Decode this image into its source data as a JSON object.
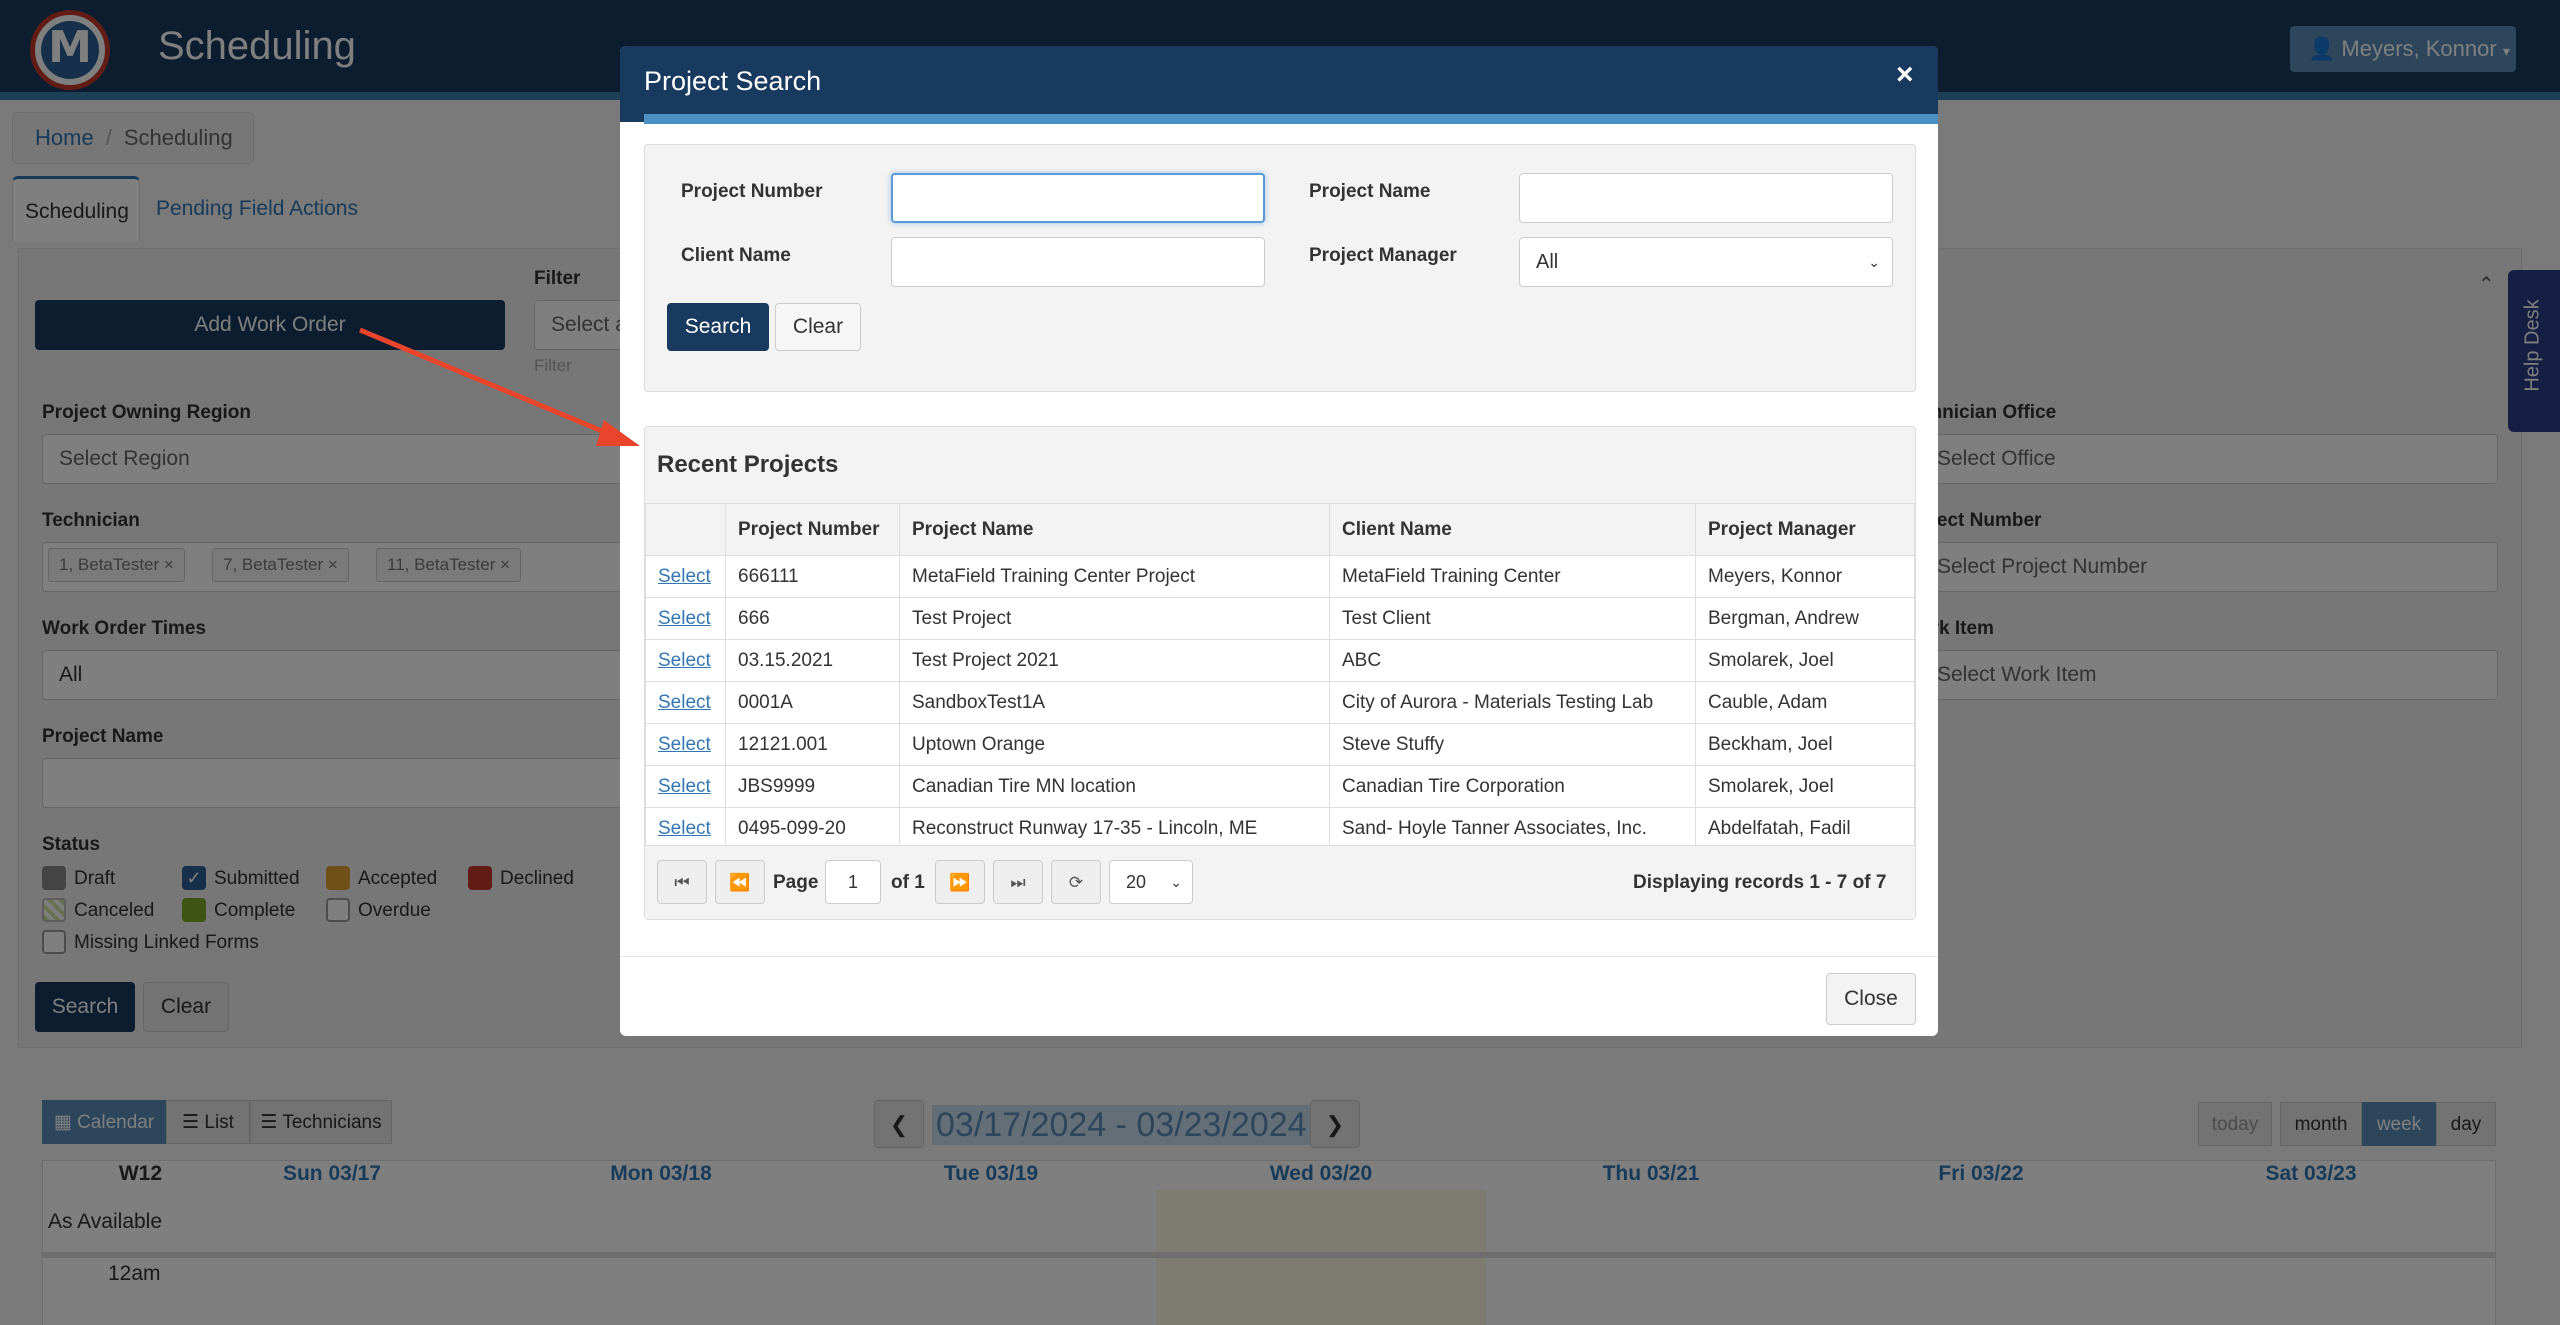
{
  "app": {
    "title": "Scheduling",
    "user": "Meyers, Konnor",
    "logo_letter": "M"
  },
  "breadcrumb": {
    "home": "Home",
    "current": "Scheduling"
  },
  "tabs": [
    "Scheduling",
    "Pending Field Actions"
  ],
  "filters": {
    "add_work_order": "Add Work Order",
    "filter_label": "Filter",
    "filter_placeholder": "Select a",
    "filter_hint": "Filter",
    "project_owning_region": "Project Owning Region",
    "region_placeholder": "Select Region",
    "technician": "Technician",
    "technician_tags": [
      "1, BetaTester",
      "7, BetaTester",
      "11, BetaTester"
    ],
    "tag_remove": "×",
    "work_order_times": "Work Order Times",
    "work_order_times_value": "All",
    "project_name": "Project Name",
    "status": "Status",
    "status_items": [
      "Draft",
      "Submitted",
      "Accepted",
      "Declined",
      "Canceled",
      "Complete",
      "Overdue",
      "Missing Linked Forms"
    ],
    "technician_office": "chnician Office",
    "office_placeholder": "Select Office",
    "project_number": "oject Number",
    "project_number_placeholder": "Select Project Number",
    "work_item": "ork Item",
    "work_item_placeholder": "Select Work Item",
    "search": "Search",
    "clear": "Clear"
  },
  "calendar": {
    "views": [
      "Calendar",
      "List",
      "Technicians"
    ],
    "date_range": "03/17/2024 - 03/23/2024",
    "prev": "❮",
    "next": "❯",
    "range_buttons": [
      "today",
      "month",
      "week",
      "day"
    ],
    "week": "W12",
    "days": [
      "Sun 03/17",
      "Mon 03/18",
      "Tue 03/19",
      "Wed 03/20",
      "Thu 03/21",
      "Fri 03/22",
      "Sat 03/23"
    ],
    "as_available": "As Available",
    "first_hour": "12am"
  },
  "help_desk": "Help Desk",
  "modal": {
    "title": "Project Search",
    "close_x": "×",
    "fields": {
      "project_number": "Project Number",
      "project_name": "Project Name",
      "client_name": "Client Name",
      "project_manager": "Project Manager",
      "project_manager_value": "All"
    },
    "search": "Search",
    "clear": "Clear",
    "recent_title": "Recent Projects",
    "columns": [
      "",
      "Project Number",
      "Project Name",
      "Client Name",
      "Project Manager"
    ],
    "select_label": "Select",
    "rows": [
      [
        "666111",
        "MetaField Training Center Project",
        "MetaField Training Center",
        "Meyers, Konnor"
      ],
      [
        "666",
        "Test Project",
        "Test Client",
        "Bergman, Andrew"
      ],
      [
        "03.15.2021",
        "Test Project 2021",
        "ABC",
        "Smolarek, Joel"
      ],
      [
        "0001A",
        "SandboxTest1A",
        "City of Aurora - Materials Testing Lab",
        "Cauble, Adam"
      ],
      [
        "12121.001",
        "Uptown Orange",
        "Steve Stuffy",
        "Beckham, Joel"
      ],
      [
        "JBS9999",
        "Canadian Tire MN location",
        "Canadian Tire Corporation",
        "Smolarek, Joel"
      ],
      [
        "0495-099-20",
        "Reconstruct Runway 17-35 - Lincoln, ME",
        "Sand- Hoyle Tanner Associates, Inc.",
        "Abdelfatah, Fadil"
      ]
    ],
    "pager": {
      "page_label": "Page",
      "page_value": "1",
      "of_label": "of 1",
      "page_size": "20",
      "display": "Displaying records 1 - 7 of 7"
    },
    "close": "Close"
  }
}
